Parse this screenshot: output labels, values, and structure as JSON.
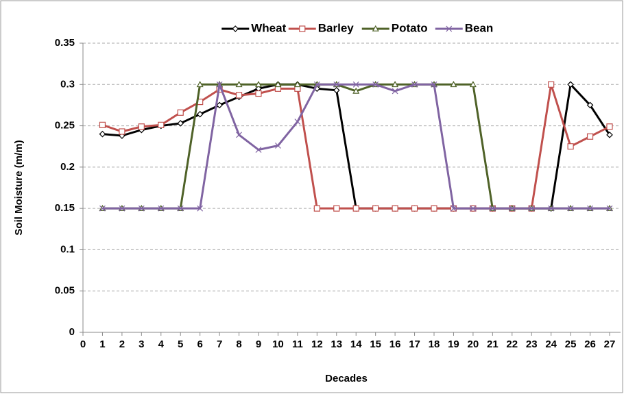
{
  "chart_data": {
    "type": "line",
    "xlabel": "Decades",
    "ylabel": "Soil Moisture (m/m)",
    "x": [
      1,
      2,
      3,
      4,
      5,
      6,
      7,
      8,
      9,
      10,
      11,
      12,
      13,
      14,
      15,
      16,
      17,
      18,
      19,
      20,
      21,
      22,
      23,
      24,
      25,
      26,
      27
    ],
    "series": [
      {
        "name": "Wheat",
        "color": "#000000",
        "marker": "diamond",
        "values": [
          0.24,
          0.238,
          0.245,
          0.25,
          0.253,
          0.264,
          0.275,
          0.285,
          0.295,
          0.3,
          0.3,
          0.295,
          0.293,
          0.15,
          0.15,
          0.15,
          0.15,
          0.15,
          0.15,
          0.15,
          0.15,
          0.15,
          0.15,
          0.15,
          0.3,
          0.275,
          0.239
        ]
      },
      {
        "name": "Barley",
        "color": "#c0504d",
        "marker": "square",
        "values": [
          0.251,
          0.243,
          0.249,
          0.251,
          0.266,
          0.279,
          0.294,
          0.287,
          0.289,
          0.295,
          0.295,
          0.15,
          0.15,
          0.15,
          0.15,
          0.15,
          0.15,
          0.15,
          0.15,
          0.15,
          0.15,
          0.15,
          0.15,
          0.3,
          0.225,
          0.237,
          0.249
        ]
      },
      {
        "name": "Potato",
        "color": "#4f6228",
        "marker": "triangle",
        "values": [
          0.15,
          0.15,
          0.15,
          0.15,
          0.15,
          0.3,
          0.3,
          0.3,
          0.3,
          0.3,
          0.3,
          0.3,
          0.3,
          0.292,
          0.3,
          0.3,
          0.3,
          0.3,
          0.3,
          0.3,
          0.15,
          0.15,
          0.15,
          0.15,
          0.15,
          0.15,
          0.15
        ]
      },
      {
        "name": "Bean",
        "color": "#8064a2",
        "marker": "x",
        "values": [
          0.15,
          0.15,
          0.15,
          0.15,
          0.15,
          0.15,
          0.3,
          0.239,
          0.221,
          0.226,
          0.255,
          0.3,
          0.3,
          0.3,
          0.3,
          0.292,
          0.3,
          0.3,
          0.15,
          0.15,
          0.15,
          0.15,
          0.15,
          0.15,
          0.15,
          0.15,
          0.15
        ]
      }
    ],
    "xlim": [
      0,
      27
    ],
    "xticks": [
      0,
      1,
      2,
      3,
      4,
      5,
      6,
      7,
      8,
      9,
      10,
      11,
      12,
      13,
      14,
      15,
      16,
      17,
      18,
      19,
      20,
      21,
      22,
      23,
      24,
      25,
      26,
      27
    ],
    "ylim": [
      0,
      0.35
    ],
    "yticks": [
      0,
      0.05,
      0.1,
      0.15,
      0.2,
      0.25,
      0.3,
      0.35
    ],
    "grid": true,
    "legend": "top"
  }
}
